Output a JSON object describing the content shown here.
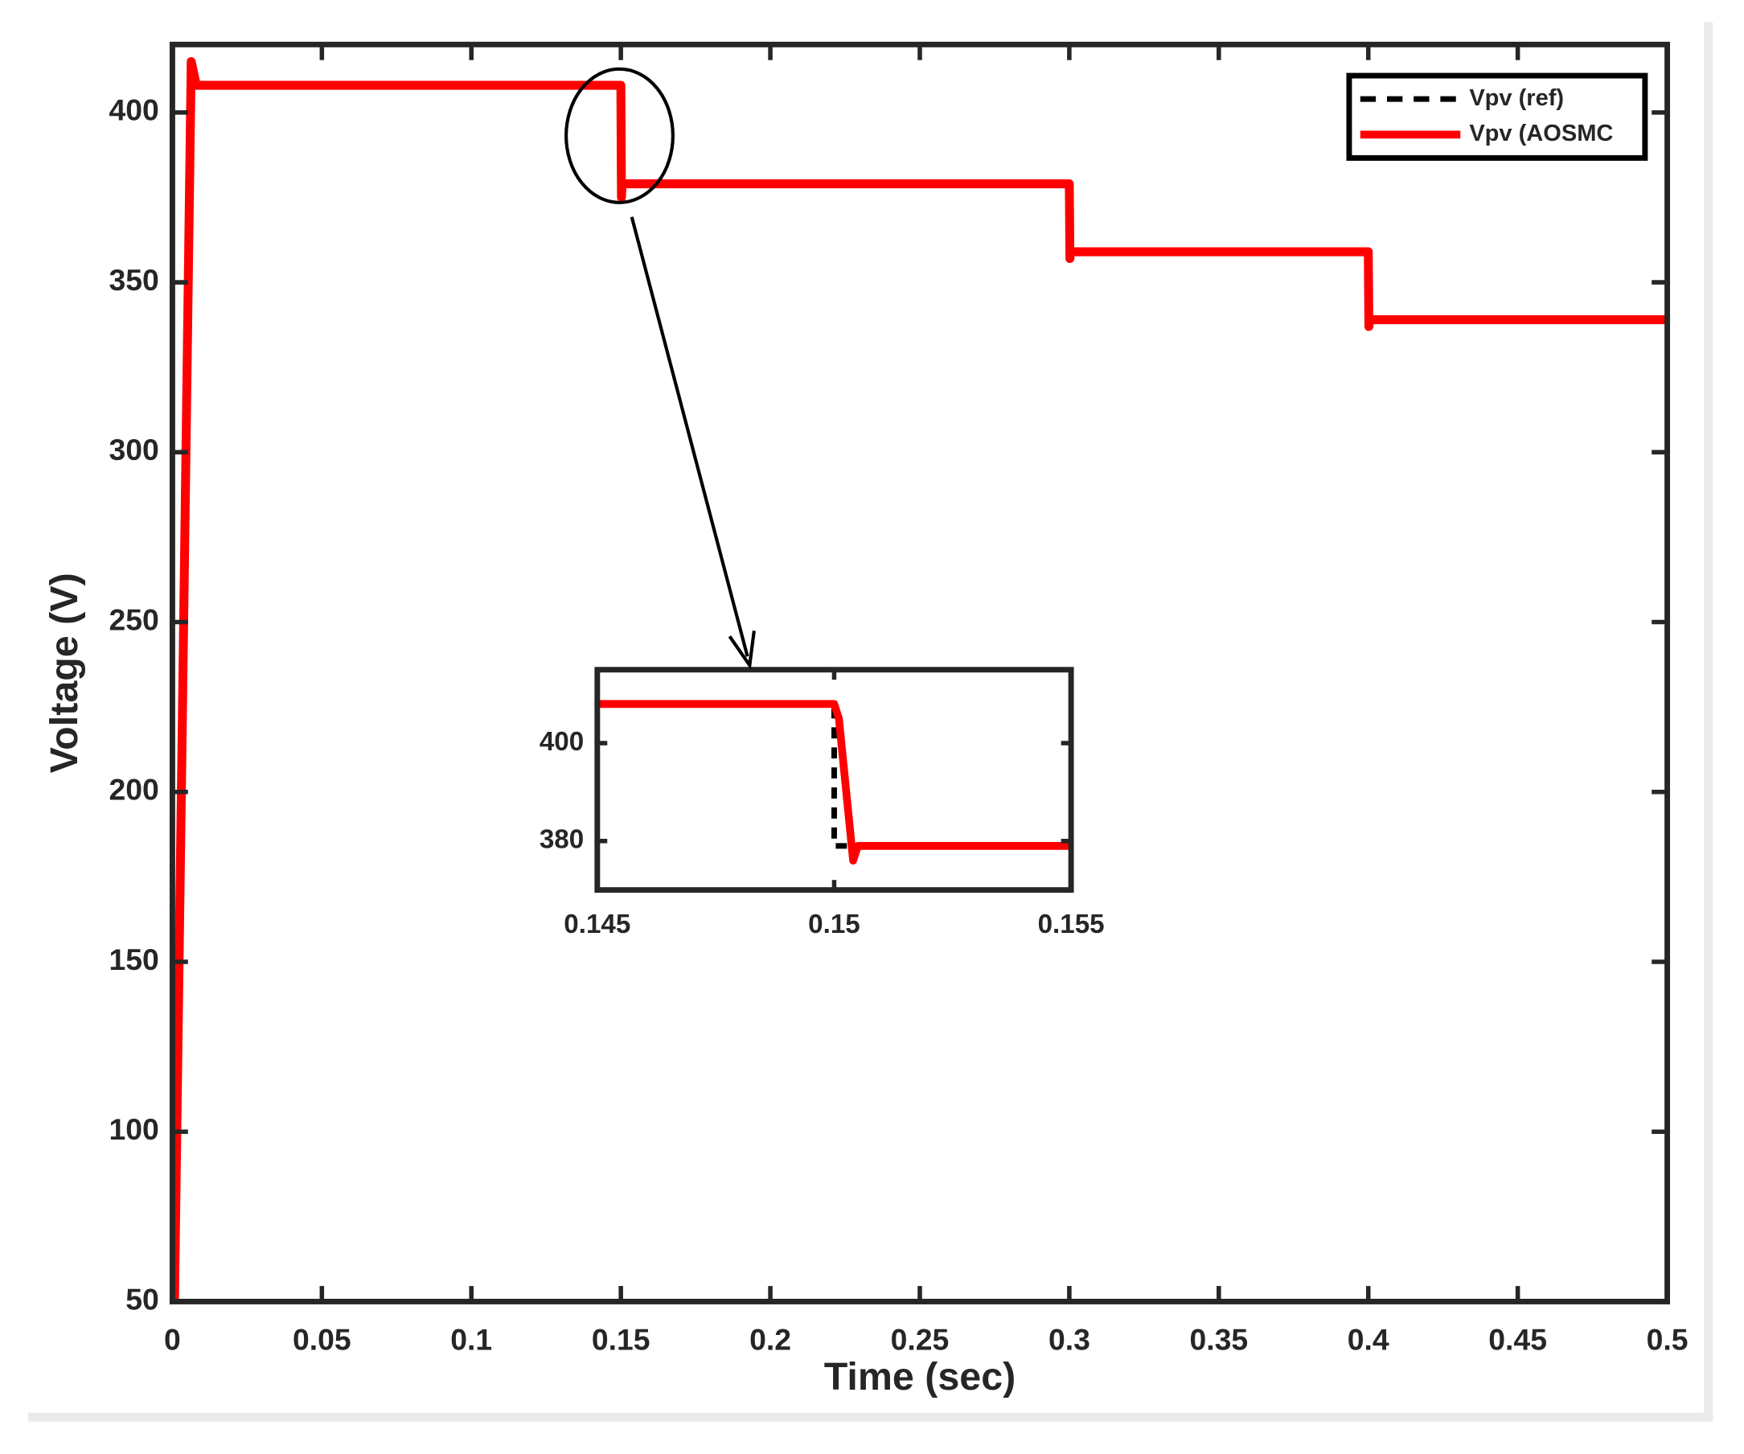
{
  "chart_data": [
    {
      "type": "line",
      "xlabel": "Time (sec)",
      "ylabel": "Voltage (V)",
      "xlim": [
        0,
        0.5
      ],
      "xticks": [
        0,
        0.05,
        0.1,
        0.15,
        0.2,
        0.25,
        0.3,
        0.35,
        0.4,
        0.45,
        0.5
      ],
      "ylim": [
        50,
        420
      ],
      "yticks": [
        50,
        100,
        150,
        200,
        250,
        300,
        350,
        400
      ],
      "legend": "upper right",
      "series": [
        {
          "name": "Vpv (ref)",
          "color": "#000000",
          "linestyle": "dashed",
          "x": [
            0.0007,
            0.0063,
            0.008,
            0.15,
            0.15,
            0.3,
            0.3,
            0.4,
            0.4,
            0.5
          ],
          "values": [
            50,
            415,
            408,
            408,
            379,
            379,
            359,
            359,
            339,
            339
          ]
        },
        {
          "name": "Vpv (AOSMC",
          "color": "#ff0000",
          "linestyle": "solid",
          "x": [
            0.0007,
            0.0063,
            0.008,
            0.15,
            0.1502,
            0.1504,
            0.3,
            0.3002,
            0.3004,
            0.4,
            0.4002,
            0.4004,
            0.5
          ],
          "values": [
            50,
            415,
            408,
            408,
            375,
            379,
            379,
            357,
            359,
            359,
            337,
            339,
            339
          ]
        }
      ]
    },
    {
      "type": "line",
      "xlim": [
        0.145,
        0.155
      ],
      "xticks": [
        0.145,
        0.15,
        0.155
      ],
      "ylim": [
        370,
        415
      ],
      "yticks": [
        380,
        400
      ],
      "series": [
        {
          "color": "#000000",
          "linestyle": "dashed",
          "x": [
            0.145,
            0.15,
            0.15,
            0.155
          ],
          "values": [
            408,
            408,
            379,
            379
          ]
        },
        {
          "color": "#ff0000",
          "linestyle": "solid",
          "x": [
            0.145,
            0.15,
            0.1501,
            0.1504,
            0.1505,
            0.155
          ],
          "values": [
            408,
            408,
            405,
            376,
            379,
            379
          ]
        }
      ]
    }
  ]
}
